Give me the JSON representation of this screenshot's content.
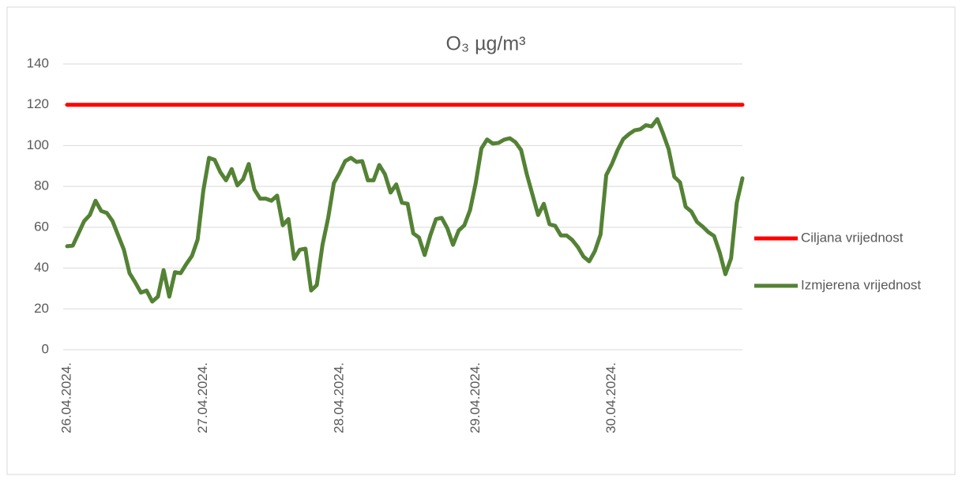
{
  "chart_data": {
    "type": "line",
    "title": "O₃ µg/m³",
    "categories": [
      "26.04.2024.",
      null,
      null,
      null,
      null,
      null,
      null,
      null,
      null,
      null,
      null,
      null,
      null,
      null,
      null,
      null,
      null,
      null,
      null,
      null,
      null,
      null,
      null,
      null,
      "27.04.2024.",
      null,
      null,
      null,
      null,
      null,
      null,
      null,
      null,
      null,
      null,
      null,
      null,
      null,
      null,
      null,
      null,
      null,
      null,
      null,
      null,
      null,
      null,
      null,
      "28.04.2024.",
      null,
      null,
      null,
      null,
      null,
      null,
      null,
      null,
      null,
      null,
      null,
      null,
      null,
      null,
      null,
      null,
      null,
      null,
      null,
      null,
      null,
      null,
      null,
      "29.04.2024.",
      null,
      null,
      null,
      null,
      null,
      null,
      null,
      null,
      null,
      null,
      null,
      null,
      null,
      null,
      null,
      null,
      null,
      null,
      null,
      null,
      null,
      null,
      null,
      "30.04.2024.",
      null,
      null,
      null,
      null,
      null,
      null,
      null,
      null,
      null,
      null,
      null,
      null,
      null,
      null,
      null,
      null,
      null,
      null,
      null,
      null,
      null,
      null,
      null
    ],
    "series": [
      {
        "name": "Ciljana vrijednost",
        "color": "#ff0000",
        "values": [
          120,
          120,
          120,
          120,
          120,
          120,
          120,
          120,
          120,
          120,
          120,
          120,
          120,
          120,
          120,
          120,
          120,
          120,
          120,
          120,
          120,
          120,
          120,
          120,
          120,
          120,
          120,
          120,
          120,
          120,
          120,
          120,
          120,
          120,
          120,
          120,
          120,
          120,
          120,
          120,
          120,
          120,
          120,
          120,
          120,
          120,
          120,
          120,
          120,
          120,
          120,
          120,
          120,
          120,
          120,
          120,
          120,
          120,
          120,
          120,
          120,
          120,
          120,
          120,
          120,
          120,
          120,
          120,
          120,
          120,
          120,
          120,
          120,
          120,
          120,
          120,
          120,
          120,
          120,
          120,
          120,
          120,
          120,
          120,
          120,
          120,
          120,
          120,
          120,
          120,
          120,
          120,
          120,
          120,
          120,
          120,
          120,
          120,
          120,
          120,
          120,
          120,
          120,
          120,
          120,
          120,
          120,
          120,
          120,
          120,
          120,
          120,
          120,
          120,
          120,
          120,
          120,
          120,
          120,
          120
        ]
      },
      {
        "name": "Izmjerena vrijednost",
        "color": "#548235",
        "values": [
          50.7,
          51,
          57,
          63,
          66,
          73,
          68,
          67,
          63,
          56,
          49,
          37.5,
          33,
          28,
          29,
          23.6,
          26,
          39,
          26,
          38,
          37.5,
          42,
          46,
          54,
          78,
          94,
          93,
          87,
          83,
          88.5,
          80.5,
          83.5,
          91,
          78.5,
          74,
          74,
          73,
          75.5,
          61,
          64,
          44.5,
          49,
          49.5,
          29,
          31.7,
          51.4,
          64.6,
          81.6,
          86.6,
          92.4,
          94,
          92,
          92.4,
          83,
          83,
          90.5,
          86,
          77,
          81,
          72,
          71.5,
          57,
          55,
          46.4,
          56,
          64,
          64.6,
          59.5,
          51.4,
          58.4,
          61,
          68.4,
          81.6,
          98.6,
          103,
          101,
          101.3,
          102.9,
          103.6,
          101.7,
          97.8,
          86,
          76,
          66,
          71.5,
          61.5,
          60.7,
          56,
          56,
          53.8,
          50.3,
          45.6,
          43.3,
          48.3,
          56.5,
          85.5,
          91,
          97.8,
          103.2,
          105.6,
          107.5,
          108,
          110,
          109.4,
          113,
          106,
          98.2,
          84.7,
          82,
          70,
          67.7,
          62.6,
          60.3,
          57.6,
          55.7,
          47.6,
          37,
          44.8,
          72,
          84
        ]
      }
    ],
    "ylim": [
      0,
      140
    ],
    "yticks": [
      0,
      20,
      40,
      60,
      80,
      100,
      120,
      140
    ],
    "grid": true,
    "legend": "right"
  }
}
